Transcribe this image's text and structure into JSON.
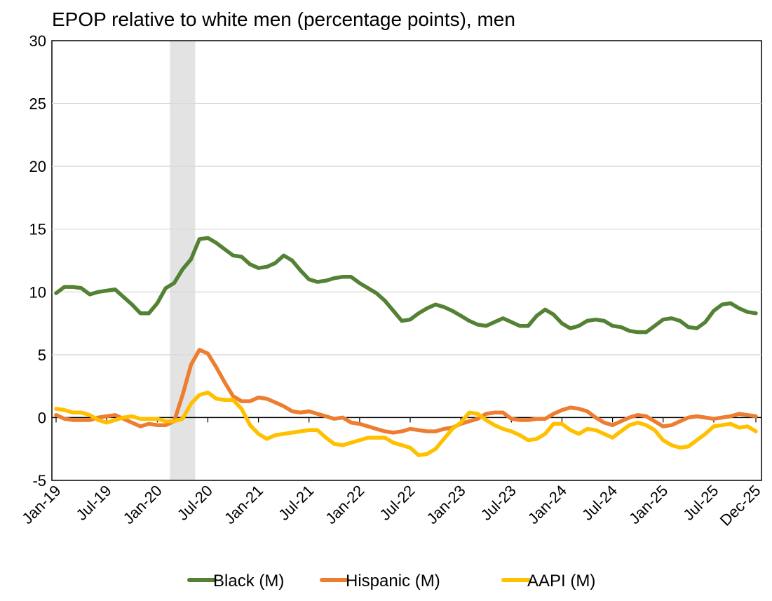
{
  "chart_data": {
    "type": "line",
    "title": "EPOP relative to white men (percentage points), men",
    "xlabel": "",
    "ylabel": "",
    "ylim": [
      -5,
      30
    ],
    "yticks": [
      -5,
      0,
      5,
      10,
      15,
      20,
      25,
      30
    ],
    "xtick_labels": [
      "Jan-19",
      "Jul-19",
      "Jan-20",
      "Jul-20",
      "Jan-21",
      "Jul-21",
      "Jan-22",
      "Jul-22",
      "Jan-23",
      "Jul-23",
      "Jan-24",
      "Jul-24",
      "Jan-25",
      "Jul-25",
      "Dec-25"
    ],
    "xtick_month_index": [
      0,
      6,
      12,
      18,
      24,
      30,
      36,
      42,
      48,
      54,
      60,
      66,
      72,
      78,
      83
    ],
    "n_months": 84,
    "recession_shading": {
      "start_month_index": 13.5,
      "end_month_index": 16.5,
      "color": "#e3e3e3"
    },
    "legend_position": "bottom",
    "grid": "horizontal",
    "series": [
      {
        "name": "Black (M)",
        "color": "#548235",
        "values": [
          9.9,
          10.4,
          10.4,
          10.3,
          9.8,
          10.0,
          10.1,
          10.2,
          9.6,
          9.0,
          8.3,
          8.3,
          9.1,
          10.3,
          10.7,
          11.8,
          12.6,
          14.2,
          14.3,
          13.9,
          13.4,
          12.9,
          12.8,
          12.2,
          11.9,
          12.0,
          12.3,
          12.9,
          12.5,
          11.7,
          11.0,
          10.8,
          10.9,
          11.1,
          11.2,
          11.2,
          10.7,
          10.3,
          9.9,
          9.3,
          8.5,
          7.7,
          7.8,
          8.3,
          8.7,
          9.0,
          8.8,
          8.5,
          8.1,
          7.7,
          7.4,
          7.3,
          7.6,
          7.9,
          7.6,
          7.3,
          7.3,
          8.1,
          8.6,
          8.2,
          7.5,
          7.1,
          7.3,
          7.7,
          7.8,
          7.7,
          7.3,
          7.2,
          6.9,
          6.8,
          6.8,
          7.3,
          7.8,
          7.9,
          7.7,
          7.2,
          7.1,
          7.6,
          8.5,
          9.0,
          9.1,
          8.7,
          8.4,
          8.3
        ]
      },
      {
        "name": "Hispanic (M)",
        "color": "#ed7d31",
        "values": [
          0.2,
          -0.1,
          -0.2,
          -0.2,
          -0.2,
          0.0,
          0.1,
          0.2,
          -0.1,
          -0.4,
          -0.7,
          -0.5,
          -0.6,
          -0.6,
          -0.3,
          1.8,
          4.2,
          5.4,
          5.1,
          4.0,
          2.8,
          1.7,
          1.3,
          1.3,
          1.6,
          1.5,
          1.2,
          0.9,
          0.5,
          0.4,
          0.5,
          0.3,
          0.1,
          -0.1,
          0.0,
          -0.4,
          -0.5,
          -0.7,
          -0.9,
          -1.1,
          -1.2,
          -1.1,
          -0.9,
          -1.0,
          -1.1,
          -1.1,
          -0.9,
          -0.8,
          -0.5,
          -0.3,
          -0.1,
          0.3,
          0.4,
          0.4,
          -0.1,
          -0.2,
          -0.2,
          -0.1,
          -0.1,
          0.3,
          0.6,
          0.8,
          0.7,
          0.5,
          0.0,
          -0.4,
          -0.6,
          -0.3,
          0.0,
          0.2,
          0.1,
          -0.3,
          -0.7,
          -0.6,
          -0.3,
          0.0,
          0.1,
          0.0,
          -0.1,
          0.0,
          0.1,
          0.3,
          0.2,
          0.1
        ]
      },
      {
        "name": "AAPI (M)",
        "color": "#ffc000",
        "values": [
          0.7,
          0.6,
          0.4,
          0.4,
          0.2,
          -0.2,
          -0.4,
          -0.2,
          0.0,
          0.1,
          -0.1,
          -0.1,
          -0.1,
          -0.3,
          -0.3,
          -0.1,
          1.1,
          1.8,
          2.0,
          1.5,
          1.4,
          1.4,
          0.7,
          -0.6,
          -1.3,
          -1.7,
          -1.4,
          -1.3,
          -1.2,
          -1.1,
          -1.0,
          -1.0,
          -1.6,
          -2.1,
          -2.2,
          -2.0,
          -1.8,
          -1.6,
          -1.6,
          -1.6,
          -2.0,
          -2.2,
          -2.4,
          -3.0,
          -2.9,
          -2.5,
          -1.7,
          -0.9,
          -0.4,
          0.4,
          0.3,
          -0.2,
          -0.6,
          -0.9,
          -1.1,
          -1.4,
          -1.8,
          -1.7,
          -1.3,
          -0.5,
          -0.5,
          -1.0,
          -1.3,
          -0.9,
          -1.0,
          -1.3,
          -1.6,
          -1.1,
          -0.6,
          -0.4,
          -0.6,
          -1.0,
          -1.8,
          -2.2,
          -2.4,
          -2.3,
          -1.8,
          -1.3,
          -0.7,
          -0.6,
          -0.5,
          -0.8,
          -0.7,
          -1.1
        ]
      }
    ]
  }
}
